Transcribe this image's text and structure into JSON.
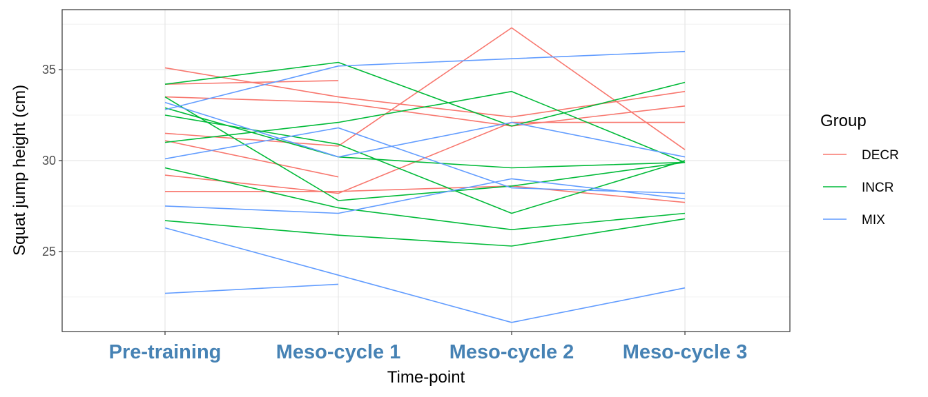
{
  "chart_data": {
    "type": "line",
    "xlabel": "Time-point",
    "ylabel": "Squat jump height (cm)",
    "x": [
      "Pre-training",
      "Meso-cycle 1",
      "Meso-cycle 2",
      "Meso-cycle 3"
    ],
    "ylim": [
      20.6,
      38.3
    ],
    "yticks": [
      25,
      30,
      35
    ],
    "grid": true,
    "legend_title": "Group",
    "legend_position": "right",
    "x_tick_color": "#4682B4",
    "groups": [
      {
        "name": "DECR",
        "color": "#F8766D"
      },
      {
        "name": "INCR",
        "color": "#00BA38"
      },
      {
        "name": "MIX",
        "color": "#619CFF"
      }
    ],
    "series": [
      {
        "group": "DECR",
        "values": [
          35.1,
          33.5,
          32.4,
          33.8
        ]
      },
      {
        "group": "DECR",
        "values": [
          34.2,
          34.4,
          null,
          null
        ]
      },
      {
        "group": "DECR",
        "values": [
          33.5,
          33.2,
          31.9,
          33.0
        ]
      },
      {
        "group": "DECR",
        "values": [
          31.5,
          30.8,
          37.3,
          30.6
        ]
      },
      {
        "group": "DECR",
        "values": [
          31.1,
          29.1,
          null,
          null
        ]
      },
      {
        "group": "DECR",
        "values": [
          29.2,
          28.2,
          32.1,
          32.1
        ]
      },
      {
        "group": "DECR",
        "values": [
          28.3,
          28.3,
          28.6,
          27.7
        ]
      },
      {
        "group": "INCR",
        "values": [
          34.2,
          35.4,
          31.9,
          34.3
        ]
      },
      {
        "group": "INCR",
        "values": [
          33.5,
          27.8,
          28.6,
          29.9
        ]
      },
      {
        "group": "INCR",
        "values": [
          32.9,
          30.2,
          29.6,
          29.9
        ]
      },
      {
        "group": "INCR",
        "values": [
          32.5,
          30.9,
          27.1,
          30.0
        ]
      },
      {
        "group": "INCR",
        "values": [
          31.0,
          32.1,
          33.8,
          29.9
        ]
      },
      {
        "group": "INCR",
        "values": [
          29.6,
          27.4,
          26.2,
          27.1
        ]
      },
      {
        "group": "INCR",
        "values": [
          26.7,
          25.9,
          25.3,
          26.8
        ]
      },
      {
        "group": "MIX",
        "values": [
          32.8,
          35.2,
          35.6,
          36.0
        ]
      },
      {
        "group": "MIX",
        "values": [
          33.2,
          30.2,
          32.1,
          30.2
        ]
      },
      {
        "group": "MIX",
        "values": [
          30.1,
          31.8,
          28.5,
          28.2
        ]
      },
      {
        "group": "MIX",
        "values": [
          27.5,
          27.1,
          29.0,
          27.9
        ]
      },
      {
        "group": "MIX",
        "values": [
          26.3,
          23.7,
          21.1,
          23.0
        ]
      },
      {
        "group": "MIX",
        "values": [
          22.7,
          23.2,
          null,
          null
        ]
      }
    ]
  }
}
